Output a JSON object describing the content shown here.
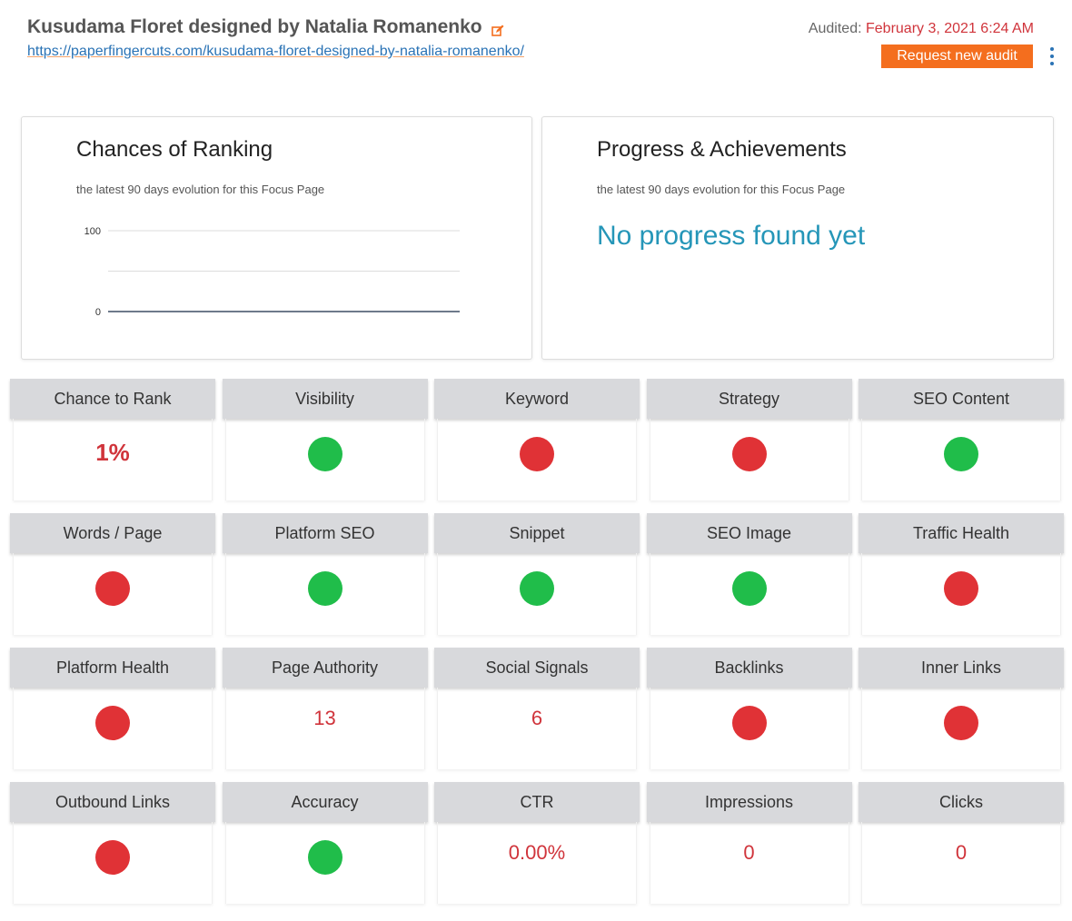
{
  "header": {
    "title": "Kusudama Floret designed by Natalia Romanenko",
    "url": "https://paperfingercuts.com/kusudama-floret-designed-by-natalia-romanenko/",
    "audited_label": "Audited:",
    "audited_date": "February 3, 2021 6:24 AM",
    "request_button": "Request new audit",
    "edit_icon": "edit-icon",
    "menu_icon": "kebab-menu-icon"
  },
  "ranking_card": {
    "title": "Chances of Ranking",
    "subtitle": "the latest 90 days evolution for this Focus Page"
  },
  "progress_card": {
    "title": "Progress & Achievements",
    "subtitle": "the latest 90 days evolution for this Focus Page",
    "message": "No progress found yet"
  },
  "chart_data": {
    "type": "line",
    "title": "",
    "xlabel": "",
    "ylabel": "",
    "ylim": [
      0,
      100
    ],
    "yticks": [
      0,
      100
    ],
    "grid": true,
    "series": [
      {
        "values": [
          0,
          0
        ]
      }
    ]
  },
  "colors": {
    "good": "#20bd4a",
    "bad": "#e03236",
    "value_text": "#d0343b",
    "accent_button": "#f46e1e",
    "link": "#2a73b5",
    "progress_message": "#2596b8"
  },
  "metrics": [
    {
      "label": "Chance to Rank",
      "kind": "value",
      "value": "1%",
      "big": true
    },
    {
      "label": "Visibility",
      "kind": "status",
      "status": "good"
    },
    {
      "label": "Keyword",
      "kind": "status",
      "status": "bad"
    },
    {
      "label": "Strategy",
      "kind": "status",
      "status": "bad"
    },
    {
      "label": "SEO Content",
      "kind": "status",
      "status": "good"
    },
    {
      "label": "Words / Page",
      "kind": "status",
      "status": "bad"
    },
    {
      "label": "Platform SEO",
      "kind": "status",
      "status": "good"
    },
    {
      "label": "Snippet",
      "kind": "status",
      "status": "good"
    },
    {
      "label": "SEO Image",
      "kind": "status",
      "status": "good"
    },
    {
      "label": "Traffic Health",
      "kind": "status",
      "status": "bad"
    },
    {
      "label": "Platform Health",
      "kind": "status",
      "status": "bad"
    },
    {
      "label": "Page Authority",
      "kind": "value",
      "value": "13"
    },
    {
      "label": "Social Signals",
      "kind": "value",
      "value": "6"
    },
    {
      "label": "Backlinks",
      "kind": "status",
      "status": "bad"
    },
    {
      "label": "Inner Links",
      "kind": "status",
      "status": "bad"
    },
    {
      "label": "Outbound Links",
      "kind": "status",
      "status": "bad"
    },
    {
      "label": "Accuracy",
      "kind": "status",
      "status": "good"
    },
    {
      "label": "CTR",
      "kind": "value",
      "value": "0.00%"
    },
    {
      "label": "Impressions",
      "kind": "value",
      "value": "0"
    },
    {
      "label": "Clicks",
      "kind": "value",
      "value": "0"
    }
  ]
}
